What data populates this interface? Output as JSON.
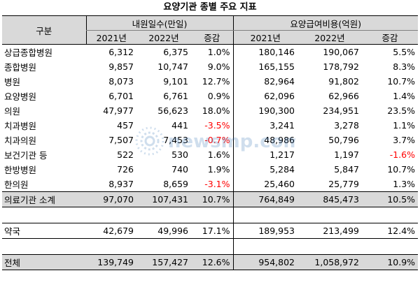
{
  "title": "요양기관 종별 주요 지표",
  "header": {
    "category": "구분",
    "group1": "내원일수(만일)",
    "group2": "요양급여비용(억원)",
    "sub": [
      "2021년",
      "2022년",
      "증감",
      "2021년",
      "2022년",
      "증감"
    ]
  },
  "rows": [
    {
      "name": "상급종합병원",
      "v": [
        "6,312",
        "6,375",
        "1.0%",
        "180,146",
        "190,067",
        "5.5%"
      ]
    },
    {
      "name": "종합병원",
      "v": [
        "9,857",
        "10,747",
        "9.0%",
        "165,155",
        "178,792",
        "8.3%"
      ]
    },
    {
      "name": "병원",
      "v": [
        "8,073",
        "9,101",
        "12.7%",
        "82,964",
        "91,802",
        "10.7%"
      ]
    },
    {
      "name": "요양병원",
      "v": [
        "6,701",
        "6,761",
        "0.9%",
        "62,096",
        "62,966",
        "1.4%"
      ]
    },
    {
      "name": "의원",
      "v": [
        "47,977",
        "56,623",
        "18.0%",
        "190,300",
        "234,951",
        "23.5%"
      ]
    },
    {
      "name": "치과병원",
      "v": [
        "457",
        "441",
        "-3.5%",
        "3,241",
        "3,278",
        "1.1%"
      ]
    },
    {
      "name": "치과의원",
      "v": [
        "7,507",
        "7,453",
        "-0.7%",
        "48,986",
        "50,796",
        "3.7%"
      ]
    },
    {
      "name": "보건기관 등",
      "v": [
        "522",
        "530",
        "1.6%",
        "1,217",
        "1,197",
        "-1.6%"
      ]
    },
    {
      "name": "한방병원",
      "v": [
        "726",
        "740",
        "1.9%",
        "5,284",
        "5,847",
        "10.7%"
      ]
    },
    {
      "name": "한의원",
      "v": [
        "8,937",
        "8,659",
        "-3.1%",
        "25,460",
        "25,779",
        "1.3%"
      ]
    }
  ],
  "subtotal": {
    "name": "의료기관 소계",
    "v": [
      "97,070",
      "107,431",
      "10.7%",
      "764,849",
      "845,473",
      "10.5%"
    ]
  },
  "pharmacy": {
    "name": "약국",
    "v": [
      "42,679",
      "49,996",
      "17.1%",
      "189,953",
      "213,499",
      "12.4%"
    ]
  },
  "total": {
    "name": "전체",
    "v": [
      "139,749",
      "157,427",
      "12.6%",
      "954,802",
      "1,058,972",
      "10.9%"
    ]
  },
  "watermark": "newsmp.com",
  "colors": {
    "header_bg": "#d9d9d9",
    "negative": "#ff0000",
    "watermark": "#2b6cb0"
  }
}
